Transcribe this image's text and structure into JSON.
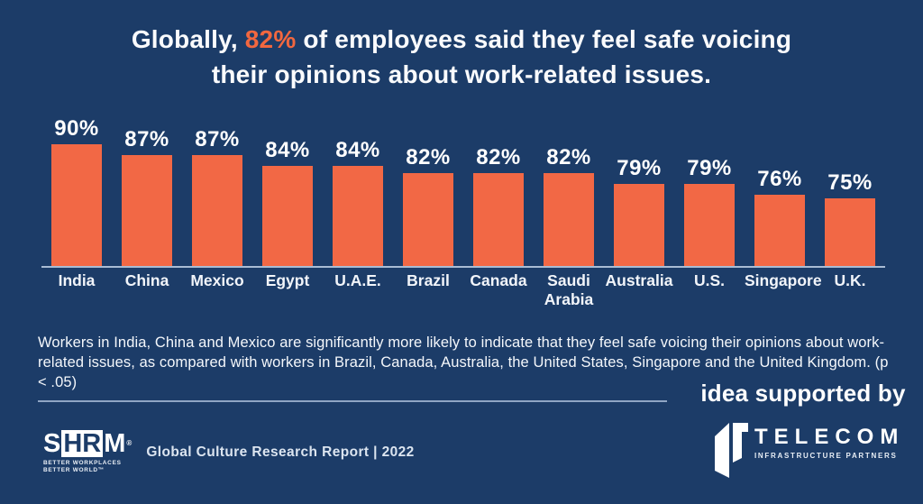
{
  "title": {
    "line1_pre": "Globally, ",
    "line1_highlight": "82%",
    "line1_post": " of employees said they feel safe voicing",
    "line2": "their opinions about work-related issues."
  },
  "chart_data": {
    "type": "bar",
    "categories": [
      "India",
      "China",
      "Mexico",
      "Egypt",
      "U.A.E.",
      "Brazil",
      "Canada",
      "Saudi Arabia",
      "Australia",
      "U.S.",
      "Singapore",
      "U.K."
    ],
    "values": [
      90,
      87,
      87,
      84,
      84,
      82,
      82,
      82,
      79,
      79,
      76,
      75
    ],
    "value_suffix": "%",
    "title": "Globally, 82% of employees said they feel safe voicing their opinions about work-related issues.",
    "xlabel": "",
    "ylabel": "",
    "ylim": [
      0,
      100
    ],
    "grid": false,
    "legend": "none",
    "value_labels_position": "above bars",
    "bar_color": "#F26845",
    "baseline_color": "#A9BCD4",
    "label_color": "#FFFFFF"
  },
  "footnote": {
    "text": "Workers in India, China and Mexico are significantly more likely to indicate that they feel safe voicing their opinions about work-related issues, as compared with workers in Brazil, Canada, Australia, the United States, Singapore and the United Kingdom. (p < .05)"
  },
  "footer": {
    "shrm": {
      "s": "S",
      "hr": "HR",
      "m": "M",
      "reg": "®",
      "tagline1": "BETTER WORKPLACES",
      "tagline2": "BETTER WORLD™"
    },
    "report_title": "Global Culture Research Report | 2022"
  },
  "supporter": {
    "label": "idea supported by",
    "brand": "TELECOM",
    "sub": "INFRASTRUCTURE PARTNERS"
  },
  "colors": {
    "background": "#1C3C68",
    "accent_orange": "#F2673F",
    "bar_orange": "#F26845",
    "text_white": "#FFFFFF",
    "divider": "#8FA5C4",
    "baseline": "#A9BCD4"
  }
}
